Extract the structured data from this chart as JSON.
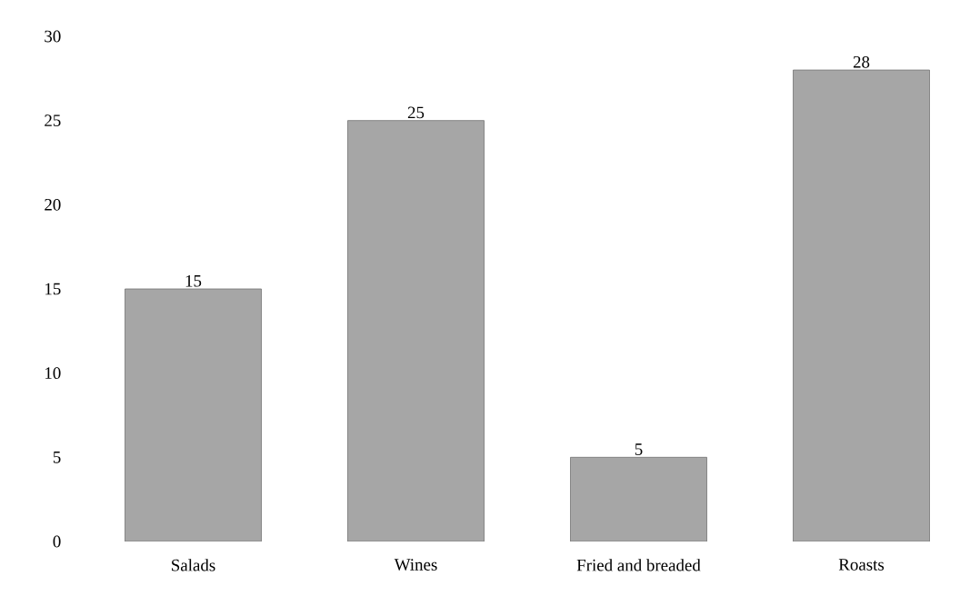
{
  "chart_data": {
    "type": "bar",
    "categories": [
      "Salads",
      "Wines",
      "Fried and breaded",
      "Roasts"
    ],
    "values": [
      15,
      25,
      5,
      28
    ],
    "color": "#a6a6a6",
    "ylim": [
      0,
      30
    ],
    "yticks": [
      0,
      5,
      10,
      15,
      20,
      25,
      30
    ],
    "data_labels": true
  }
}
